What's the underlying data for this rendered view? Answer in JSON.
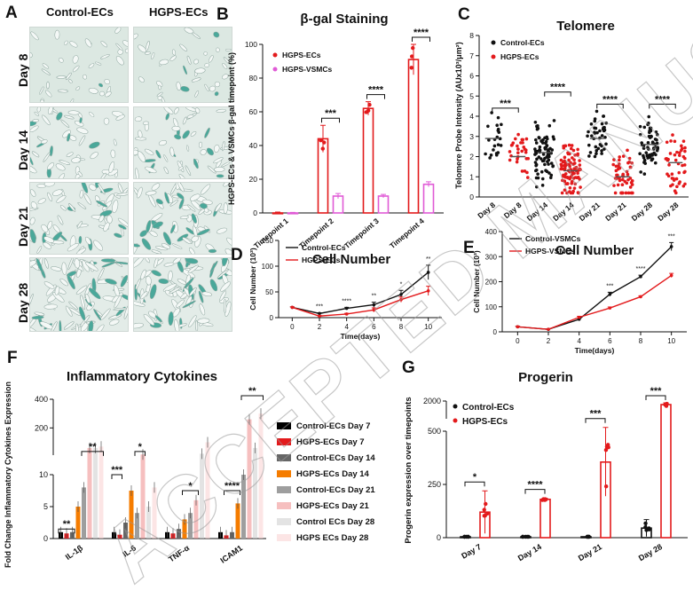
{
  "panels": {
    "A": {
      "letter": "A",
      "columns": [
        "Control-ECs",
        "HGPS-ECs"
      ],
      "rows": [
        "Day 8",
        "Day 14",
        "Day 21",
        "Day 28"
      ]
    }
  },
  "watermark": "ACCEPTED MANUSCRIPT",
  "chart_data": [
    {
      "panel": "B",
      "type": "bar",
      "title": "β-gal Staining",
      "ylabel": "HGPS-ECs & VSMCs β-gal timepoint (%)",
      "categories": [
        "Timepoint 1",
        "Timepoint 2",
        "Timepoint 3",
        "Timepoint 4"
      ],
      "ylim": [
        0,
        100
      ],
      "yticks": [
        0,
        20,
        40,
        60,
        80,
        100
      ],
      "legend": "top-left",
      "series": [
        {
          "name": "HGPS-ECs",
          "color": "#e31a1c",
          "values": [
            0,
            44,
            62,
            91
          ],
          "errors": [
            0.5,
            8,
            4,
            9
          ]
        },
        {
          "name": "HGPS-VSMCs",
          "color": "#e05ad6",
          "values": [
            0,
            10,
            10,
            17
          ],
          "errors": [
            0.3,
            1.5,
            1,
            1.5
          ]
        }
      ],
      "significance": [
        "***",
        "****",
        "****"
      ]
    },
    {
      "panel": "C",
      "type": "scatter",
      "title": "Telomere",
      "ylabel": "Telomere Probe Intensity (AUx10³/μm²)",
      "categories": [
        "Day 8",
        "Day 8",
        "Day 14",
        "Day 14",
        "Day 21",
        "Day 21",
        "Day 28",
        "Day 28"
      ],
      "ylim": [
        0,
        8
      ],
      "yticks": [
        0,
        1,
        2,
        3,
        4,
        5,
        6,
        7,
        8
      ],
      "legend": "top-left",
      "series": [
        {
          "name": "Control-ECs",
          "color": "#111111",
          "means": [
            2.9,
            null,
            2.2,
            null,
            2.9,
            null,
            2.6,
            null
          ]
        },
        {
          "name": "HGPS-ECs",
          "color": "#e31a1c",
          "means": [
            null,
            2.0,
            null,
            1.3,
            null,
            1.0,
            null,
            1.7
          ]
        }
      ],
      "significance": [
        "***",
        "****",
        "****",
        "****"
      ]
    },
    {
      "panel": "D",
      "type": "line",
      "title": "Cell Number",
      "xlabel": "Time(days)",
      "ylabel": "Cell Number (10³)",
      "x": [
        0,
        2,
        4,
        6,
        8,
        10
      ],
      "xlim": [
        -1,
        11
      ],
      "ylim": [
        0,
        150
      ],
      "yticks": [
        0,
        50,
        100,
        150
      ],
      "legend": "top-left",
      "series": [
        {
          "name": "Control-ECs",
          "color": "#111111",
          "values": [
            20,
            8,
            18,
            25,
            45,
            88
          ],
          "errors": [
            1,
            1.5,
            2,
            5,
            8,
            14
          ]
        },
        {
          "name": "HGPS-ECs",
          "color": "#e31a1c",
          "values": [
            20,
            3,
            7,
            15,
            35,
            52
          ],
          "errors": [
            1,
            1,
            1.5,
            4,
            5,
            9
          ]
        }
      ],
      "significance": [
        "***",
        "****",
        "**",
        "*",
        "**"
      ]
    },
    {
      "panel": "E",
      "type": "line",
      "title": "Cell Number",
      "xlabel": "Time(days)",
      "ylabel": "Cell Number (10³)",
      "x": [
        0,
        2,
        4,
        6,
        8,
        10
      ],
      "xlim": [
        -1,
        11
      ],
      "ylim": [
        0,
        400
      ],
      "yticks": [
        0,
        100,
        200,
        300,
        400
      ],
      "legend": "top-left",
      "series": [
        {
          "name": "Control-VSMCs",
          "color": "#111111",
          "values": [
            20,
            10,
            50,
            150,
            220,
            340
          ],
          "errors": [
            2,
            2,
            4,
            8,
            6,
            16
          ]
        },
        {
          "name": "HGPS-VSMCs",
          "color": "#e31a1c",
          "values": [
            20,
            10,
            58,
            95,
            140,
            225
          ],
          "errors": [
            2,
            2,
            4,
            4,
            4,
            8
          ]
        }
      ],
      "significance": [
        "***",
        "****",
        "***"
      ]
    },
    {
      "panel": "F",
      "type": "bar",
      "title": "Inflammatory Cytokines",
      "ylabel": "Fold Change Inflammatory Cytokines Expression",
      "categories": [
        "IL-1β",
        "IL-6",
        "TNF-α",
        "ICAM1"
      ],
      "yticks": [
        0,
        5,
        10,
        200,
        400
      ],
      "legend": "right",
      "series": [
        {
          "name": "Control-ECs Day 7",
          "color": "#000000",
          "values": [
            1,
            1,
            1,
            1
          ]
        },
        {
          "name": "HGPS-ECs Day 7",
          "color": "#e31a1c",
          "values": [
            0.8,
            0.6,
            0.8,
            0.5
          ]
        },
        {
          "name": "Control-ECs Day 14",
          "color": "#666666",
          "values": [
            1,
            2.5,
            1.5,
            1
          ]
        },
        {
          "name": "HGPS-ECs Day 14",
          "color": "#f57c00",
          "values": [
            5,
            7.5,
            3,
            5.5
          ]
        },
        {
          "name": "Control-ECs Day 21",
          "color": "#9e9e9e",
          "values": [
            8,
            4,
            4,
            10
          ]
        },
        {
          "name": "HGPS-ECs Day 21",
          "color": "#ef8a8a",
          "values": [
            60,
            15,
            6,
            260
          ]
        },
        {
          "name": "Control ECs Day 28",
          "color": "#cccccc",
          "values": [
            60,
            5,
            20,
            60
          ]
        },
        {
          "name": "HGPS ECs Day 28",
          "color": "#f9d0d0",
          "values": [
            70,
            8,
            100,
            300
          ]
        }
      ],
      "significance": [
        "**",
        "**",
        "***",
        "*",
        "*",
        "****",
        "**"
      ]
    },
    {
      "panel": "G",
      "type": "bar",
      "title": "Progerin",
      "ylabel": "Progerin expression over timepoints",
      "categories": [
        "Day 7",
        "Day 14",
        "Day 21",
        "Day 28"
      ],
      "yticks": [
        0,
        250,
        500,
        1000,
        2000
      ],
      "legend": "top-left",
      "series": [
        {
          "name": "Control-ECs",
          "color": "#111111",
          "values": [
            1,
            1,
            1,
            45
          ],
          "errors": [
            0.5,
            0.5,
            0.5,
            40
          ]
        },
        {
          "name": "HGPS-ECs",
          "color": "#e31a1c",
          "values": [
            120,
            180,
            355,
            1800
          ],
          "errors": [
            100,
            5,
            160,
            100
          ]
        }
      ],
      "significance": [
        "*",
        "****",
        "***",
        "***"
      ]
    }
  ]
}
